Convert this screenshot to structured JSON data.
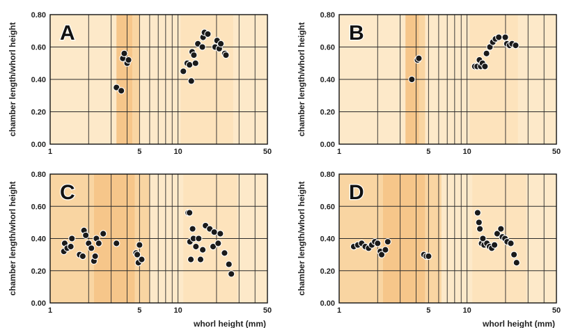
{
  "colors": {
    "background": "#fde9c9",
    "band_light": "#fde3bc",
    "band_mid": "#f9d5a2",
    "band_dark": "#f6c68a",
    "grid": "#2a2a2a",
    "point_fill": "#1a1a1a",
    "point_stroke": "#ffffff"
  },
  "chart_data": [
    {
      "type": "scatter",
      "panel_label": "A",
      "ylabel": "chamber length/whorl height",
      "xlabel": "",
      "xscale": "log",
      "xlim": [
        1,
        50
      ],
      "ylim": [
        0,
        0.8
      ],
      "xticks": [
        "1",
        "5",
        "10",
        "50"
      ],
      "yticks": [
        "0.00",
        "0.20",
        "0.40",
        "0.60",
        "0.80"
      ],
      "bands": [
        {
          "from": 3.3,
          "to": 4.4,
          "shade": "band_dark"
        },
        {
          "from": 4.4,
          "to": 5.0,
          "shade": "band_mid"
        },
        {
          "from": 10.5,
          "to": 27,
          "shade": "band_light"
        }
      ],
      "points": [
        {
          "x": 3.3,
          "y": 0.35
        },
        {
          "x": 3.6,
          "y": 0.33
        },
        {
          "x": 3.7,
          "y": 0.53
        },
        {
          "x": 3.8,
          "y": 0.56
        },
        {
          "x": 4.0,
          "y": 0.5
        },
        {
          "x": 4.1,
          "y": 0.52
        },
        {
          "x": 11.0,
          "y": 0.45
        },
        {
          "x": 11.8,
          "y": 0.5
        },
        {
          "x": 12.3,
          "y": 0.49
        },
        {
          "x": 12.7,
          "y": 0.39
        },
        {
          "x": 12.9,
          "y": 0.57
        },
        {
          "x": 13.3,
          "y": 0.55
        },
        {
          "x": 13.7,
          "y": 0.5
        },
        {
          "x": 14.3,
          "y": 0.62
        },
        {
          "x": 15.5,
          "y": 0.6
        },
        {
          "x": 15.7,
          "y": 0.66
        },
        {
          "x": 16.1,
          "y": 0.69
        },
        {
          "x": 17.1,
          "y": 0.68
        },
        {
          "x": 19.5,
          "y": 0.6
        },
        {
          "x": 20.2,
          "y": 0.64
        },
        {
          "x": 21.0,
          "y": 0.59
        },
        {
          "x": 21.6,
          "y": 0.62
        },
        {
          "x": 23.2,
          "y": 0.56
        },
        {
          "x": 23.7,
          "y": 0.55
        }
      ]
    },
    {
      "type": "scatter",
      "panel_label": "B",
      "ylabel": "chamber length/whorl height",
      "xlabel": "",
      "xscale": "log",
      "xlim": [
        1,
        50
      ],
      "ylim": [
        0,
        0.8
      ],
      "xticks": [
        "1",
        "5",
        "10",
        "50"
      ],
      "yticks": [
        "0.00",
        "0.20",
        "0.40",
        "0.60",
        "0.80"
      ],
      "bands": [
        {
          "from": 3.3,
          "to": 4.2,
          "shade": "band_dark"
        },
        {
          "from": 4.2,
          "to": 4.7,
          "shade": "band_mid"
        },
        {
          "from": 10.5,
          "to": 25,
          "shade": "band_light"
        }
      ],
      "points": [
        {
          "x": 3.7,
          "y": 0.4
        },
        {
          "x": 4.1,
          "y": 0.52
        },
        {
          "x": 4.2,
          "y": 0.53
        },
        {
          "x": 11.5,
          "y": 0.48
        },
        {
          "x": 12.0,
          "y": 0.48
        },
        {
          "x": 12.5,
          "y": 0.52
        },
        {
          "x": 12.8,
          "y": 0.48
        },
        {
          "x": 13.2,
          "y": 0.5
        },
        {
          "x": 13.8,
          "y": 0.48
        },
        {
          "x": 14.2,
          "y": 0.56
        },
        {
          "x": 15.1,
          "y": 0.6
        },
        {
          "x": 15.9,
          "y": 0.63
        },
        {
          "x": 16.7,
          "y": 0.65
        },
        {
          "x": 17.7,
          "y": 0.66
        },
        {
          "x": 19.9,
          "y": 0.66
        },
        {
          "x": 20.5,
          "y": 0.62
        },
        {
          "x": 21.5,
          "y": 0.61
        },
        {
          "x": 22.5,
          "y": 0.62
        },
        {
          "x": 24.0,
          "y": 0.61
        }
      ]
    },
    {
      "type": "scatter",
      "panel_label": "C",
      "ylabel": "chamber length/whorl height",
      "xlabel": "whorl height (mm)",
      "xscale": "log",
      "xlim": [
        1,
        50
      ],
      "ylim": [
        0,
        0.8
      ],
      "xticks": [
        "1",
        "5",
        "10",
        "50"
      ],
      "yticks": [
        "0.00",
        "0.20",
        "0.40",
        "0.60",
        "0.80"
      ],
      "bands": [
        {
          "from": 1.0,
          "to": 2.2,
          "shade": "band_mid"
        },
        {
          "from": 2.2,
          "to": 4.6,
          "shade": "band_dark"
        },
        {
          "from": 4.6,
          "to": 6.0,
          "shade": "band_mid"
        },
        {
          "from": 11.0,
          "to": 29,
          "shade": "band_light"
        }
      ],
      "points": [
        {
          "x": 1.28,
          "y": 0.32
        },
        {
          "x": 1.3,
          "y": 0.37
        },
        {
          "x": 1.36,
          "y": 0.34
        },
        {
          "x": 1.45,
          "y": 0.35
        },
        {
          "x": 1.48,
          "y": 0.4
        },
        {
          "x": 1.7,
          "y": 0.3
        },
        {
          "x": 1.8,
          "y": 0.29
        },
        {
          "x": 1.84,
          "y": 0.45
        },
        {
          "x": 1.9,
          "y": 0.42
        },
        {
          "x": 2.0,
          "y": 0.37
        },
        {
          "x": 2.1,
          "y": 0.34
        },
        {
          "x": 2.2,
          "y": 0.26
        },
        {
          "x": 2.25,
          "y": 0.29
        },
        {
          "x": 2.3,
          "y": 0.4
        },
        {
          "x": 2.4,
          "y": 0.37
        },
        {
          "x": 2.6,
          "y": 0.43
        },
        {
          "x": 3.3,
          "y": 0.37
        },
        {
          "x": 4.7,
          "y": 0.31
        },
        {
          "x": 4.8,
          "y": 0.3
        },
        {
          "x": 4.9,
          "y": 0.25
        },
        {
          "x": 5.0,
          "y": 0.36
        },
        {
          "x": 5.2,
          "y": 0.27
        },
        {
          "x": 12.0,
          "y": 0.56
        },
        {
          "x": 12.3,
          "y": 0.56
        },
        {
          "x": 12.4,
          "y": 0.38
        },
        {
          "x": 12.6,
          "y": 0.27
        },
        {
          "x": 13.0,
          "y": 0.46
        },
        {
          "x": 13.2,
          "y": 0.4
        },
        {
          "x": 13.8,
          "y": 0.35
        },
        {
          "x": 14.5,
          "y": 0.4
        },
        {
          "x": 15.0,
          "y": 0.27
        },
        {
          "x": 15.6,
          "y": 0.33
        },
        {
          "x": 16.4,
          "y": 0.48
        },
        {
          "x": 17.7,
          "y": 0.46
        },
        {
          "x": 18.8,
          "y": 0.35
        },
        {
          "x": 19.2,
          "y": 0.44
        },
        {
          "x": 20.6,
          "y": 0.37
        },
        {
          "x": 21.4,
          "y": 0.43
        },
        {
          "x": 23.1,
          "y": 0.31
        },
        {
          "x": 25.0,
          "y": 0.24
        },
        {
          "x": 26.1,
          "y": 0.18
        }
      ]
    },
    {
      "type": "scatter",
      "panel_label": "D",
      "ylabel": "chamber length/whorl height",
      "xlabel": "whorl height (mm)",
      "xscale": "log",
      "xlim": [
        1,
        50
      ],
      "ylim": [
        0,
        0.8
      ],
      "xticks": [
        "1",
        "5",
        "10",
        "50"
      ],
      "yticks": [
        "0.00",
        "0.20",
        "0.40",
        "0.60",
        "0.80"
      ],
      "bands": [
        {
          "from": 1.0,
          "to": 2.2,
          "shade": "band_mid"
        },
        {
          "from": 2.2,
          "to": 4.7,
          "shade": "band_dark"
        },
        {
          "from": 4.7,
          "to": 6.3,
          "shade": "band_mid"
        },
        {
          "from": 11.0,
          "to": 29,
          "shade": "band_light"
        }
      ],
      "points": [
        {
          "x": 1.3,
          "y": 0.35
        },
        {
          "x": 1.4,
          "y": 0.36
        },
        {
          "x": 1.5,
          "y": 0.37
        },
        {
          "x": 1.6,
          "y": 0.35
        },
        {
          "x": 1.7,
          "y": 0.34
        },
        {
          "x": 1.8,
          "y": 0.36
        },
        {
          "x": 1.9,
          "y": 0.38
        },
        {
          "x": 2.0,
          "y": 0.37
        },
        {
          "x": 2.1,
          "y": 0.32
        },
        {
          "x": 2.15,
          "y": 0.3
        },
        {
          "x": 2.3,
          "y": 0.33
        },
        {
          "x": 2.4,
          "y": 0.38
        },
        {
          "x": 4.6,
          "y": 0.3
        },
        {
          "x": 4.8,
          "y": 0.29
        },
        {
          "x": 5.0,
          "y": 0.29
        },
        {
          "x": 12.1,
          "y": 0.56
        },
        {
          "x": 12.4,
          "y": 0.5
        },
        {
          "x": 12.6,
          "y": 0.46
        },
        {
          "x": 13.0,
          "y": 0.37
        },
        {
          "x": 13.3,
          "y": 0.4
        },
        {
          "x": 13.6,
          "y": 0.36
        },
        {
          "x": 14.3,
          "y": 0.37
        },
        {
          "x": 15.0,
          "y": 0.35
        },
        {
          "x": 15.6,
          "y": 0.34
        },
        {
          "x": 16.4,
          "y": 0.36
        },
        {
          "x": 17.2,
          "y": 0.43
        },
        {
          "x": 18.4,
          "y": 0.46
        },
        {
          "x": 18.9,
          "y": 0.41
        },
        {
          "x": 19.8,
          "y": 0.4
        },
        {
          "x": 20.6,
          "y": 0.38
        },
        {
          "x": 22.0,
          "y": 0.37
        },
        {
          "x": 23.3,
          "y": 0.3
        },
        {
          "x": 24.4,
          "y": 0.25
        }
      ]
    }
  ]
}
